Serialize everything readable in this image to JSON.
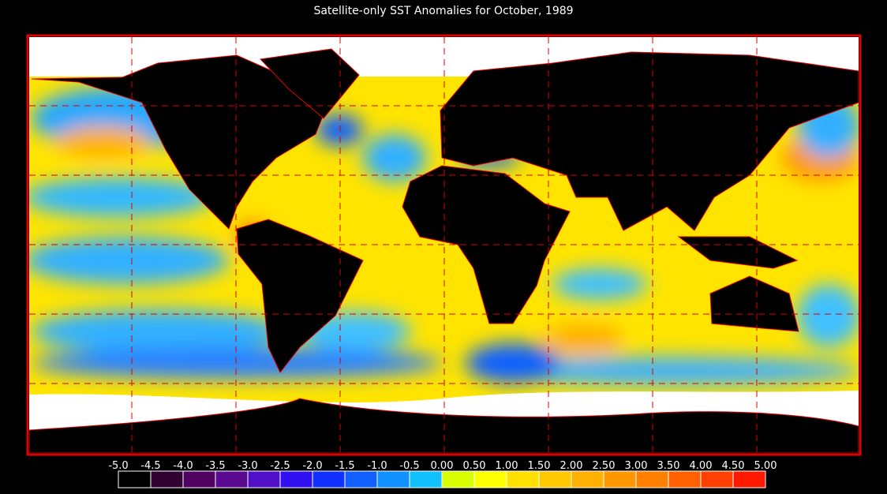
{
  "title": "Satellite-only SST Anomalies for October, 1989",
  "colorbar": {
    "labels": [
      "-5.0",
      "-4.5",
      "-4.0",
      "-3.5",
      "-3.0",
      "-2.5",
      "-2.0",
      "-1.5",
      "-1.0",
      "-0.5",
      "0.00",
      "0.50",
      "1.00",
      "1.50",
      "2.00",
      "2.50",
      "3.00",
      "3.50",
      "4.00",
      "4.50",
      "5.00"
    ],
    "colors": [
      "#000000",
      "#300030",
      "#500060",
      "#5a0a90",
      "#5010c8",
      "#3010f0",
      "#1030ff",
      "#1060ff",
      "#1090ff",
      "#10c0ff",
      "#d8ff00",
      "#ffff00",
      "#ffe000",
      "#ffc800",
      "#ffb000",
      "#ff9800",
      "#ff8000",
      "#ff6000",
      "#ff4000",
      "#ff1800"
    ]
  }
}
